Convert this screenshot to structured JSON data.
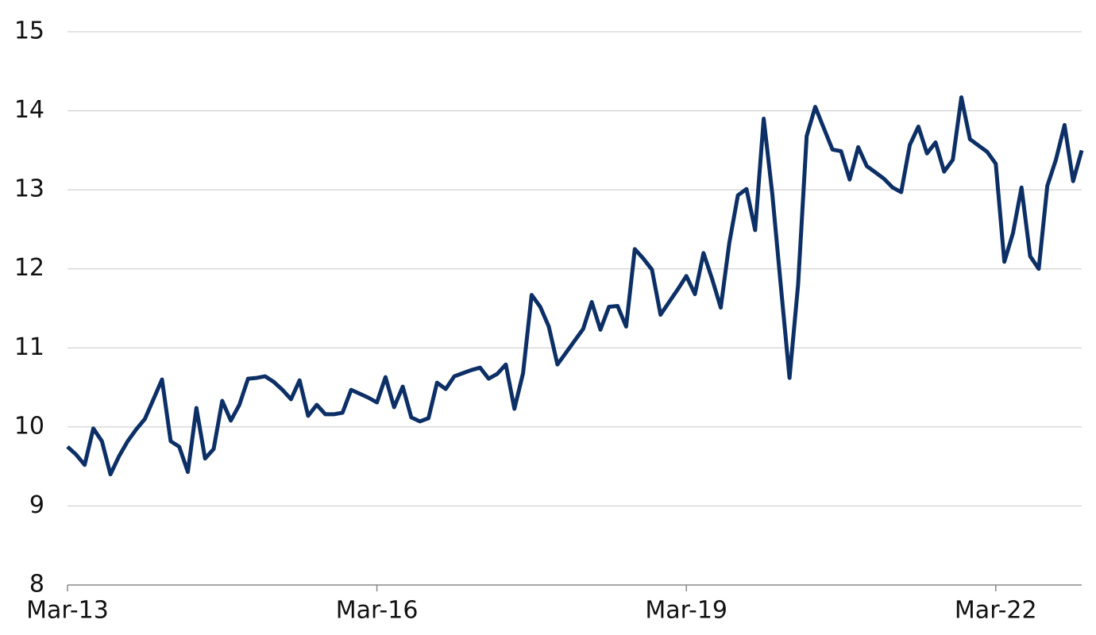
{
  "chart_data": {
    "type": "line",
    "x": [
      "2013-03",
      "2013-04",
      "2013-05",
      "2013-06",
      "2013-07",
      "2013-08",
      "2013-09",
      "2013-10",
      "2013-11",
      "2013-12",
      "2014-01",
      "2014-02",
      "2014-03",
      "2014-04",
      "2014-05",
      "2014-06",
      "2014-07",
      "2014-08",
      "2014-09",
      "2014-10",
      "2014-11",
      "2014-12",
      "2015-01",
      "2015-02",
      "2015-03",
      "2015-04",
      "2015-05",
      "2015-06",
      "2015-07",
      "2015-08",
      "2015-09",
      "2015-10",
      "2015-11",
      "2015-12",
      "2016-01",
      "2016-02",
      "2016-03",
      "2016-04",
      "2016-05",
      "2016-06",
      "2016-07",
      "2016-08",
      "2016-09",
      "2016-10",
      "2016-11",
      "2016-12",
      "2017-01",
      "2017-02",
      "2017-03",
      "2017-04",
      "2017-05",
      "2017-06",
      "2017-07",
      "2017-08",
      "2017-09",
      "2017-10",
      "2017-11",
      "2017-12",
      "2018-01",
      "2018-02",
      "2018-03",
      "2018-04",
      "2018-05",
      "2018-06",
      "2018-07",
      "2018-08",
      "2018-09",
      "2018-10",
      "2018-11",
      "2018-12",
      "2019-01",
      "2019-02",
      "2019-03",
      "2019-04",
      "2019-05",
      "2019-06",
      "2019-07",
      "2019-08",
      "2019-09",
      "2019-10",
      "2019-11",
      "2019-12",
      "2020-01",
      "2020-02",
      "2020-03",
      "2020-04",
      "2020-05",
      "2020-06",
      "2020-07",
      "2020-08",
      "2020-09",
      "2020-10",
      "2020-11",
      "2020-12",
      "2021-01",
      "2021-02",
      "2021-03",
      "2021-04",
      "2021-05",
      "2021-06",
      "2021-07",
      "2021-08",
      "2021-09",
      "2021-10",
      "2021-11",
      "2021-12",
      "2022-01",
      "2022-02",
      "2022-03",
      "2022-04",
      "2022-05",
      "2022-06",
      "2022-07",
      "2022-08",
      "2022-09",
      "2022-10",
      "2022-11",
      "2022-12",
      "2023-01"
    ],
    "values": [
      9.75,
      9.65,
      9.52,
      9.98,
      9.82,
      9.4,
      9.63,
      9.82,
      9.97,
      10.1,
      10.35,
      10.6,
      9.82,
      9.75,
      9.43,
      10.24,
      9.6,
      9.72,
      10.33,
      10.08,
      10.28,
      10.61,
      10.62,
      10.64,
      10.57,
      10.47,
      10.35,
      10.59,
      10.14,
      10.28,
      10.16,
      10.16,
      10.18,
      10.47,
      10.42,
      10.37,
      10.31,
      10.63,
      10.25,
      10.51,
      10.12,
      10.07,
      10.11,
      10.56,
      10.48,
      10.64,
      10.68,
      10.72,
      10.75,
      10.61,
      10.67,
      10.79,
      10.23,
      10.68,
      11.67,
      11.52,
      11.27,
      10.79,
      10.94,
      11.09,
      11.24,
      11.58,
      11.23,
      11.52,
      11.53,
      11.27,
      12.25,
      12.13,
      11.99,
      11.42,
      11.58,
      11.74,
      11.91,
      11.68,
      12.2,
      11.87,
      11.51,
      12.33,
      12.93,
      13.01,
      12.49,
      13.9,
      12.95,
      11.78,
      10.62,
      11.8,
      13.68,
      14.05,
      13.78,
      13.51,
      13.49,
      13.13,
      13.54,
      13.3,
      13.22,
      13.14,
      13.03,
      12.97,
      13.57,
      13.8,
      13.46,
      13.6,
      13.23,
      13.38,
      14.17,
      13.64,
      13.56,
      13.48,
      13.33,
      12.09,
      12.45,
      13.03,
      12.16,
      12.0,
      13.05,
      13.38,
      13.82,
      13.11,
      13.5
    ],
    "color": "#0c2f66",
    "xlim": [
      "2013-03",
      "2023-01"
    ],
    "xticks": [
      {
        "value": "2013-03",
        "label": "Mar-13"
      },
      {
        "value": "2016-03",
        "label": "Mar-16"
      },
      {
        "value": "2019-03",
        "label": "Mar-19"
      },
      {
        "value": "2022-03",
        "label": "Mar-22"
      }
    ],
    "ylim": [
      8,
      15
    ],
    "yticks": [
      8,
      9,
      10,
      11,
      12,
      13,
      14,
      15
    ],
    "grid": true
  }
}
